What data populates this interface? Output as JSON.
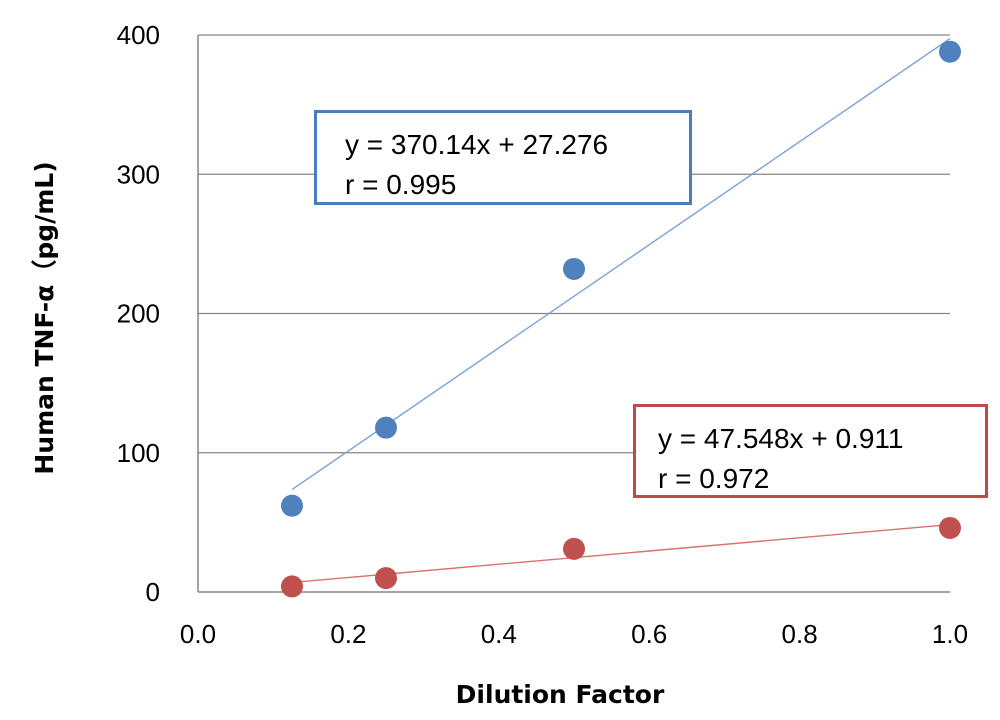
{
  "chart_data": {
    "type": "scatter",
    "title": "",
    "xlabel": "Dilution Factor",
    "ylabel": "Human TNF-α（pg/mL)",
    "xlim": [
      0.0,
      1.0
    ],
    "ylim": [
      0,
      400
    ],
    "xticks": [
      "0.0",
      "0.2",
      "0.4",
      "0.6",
      "0.8",
      "1.0"
    ],
    "yticks": [
      "0",
      "100",
      "200",
      "300",
      "400"
    ],
    "grid": "horizontal",
    "legend": "none",
    "series": [
      {
        "color": "#4F81BD",
        "line_color": "#7BA3D6",
        "x": [
          0.125,
          0.25,
          0.5,
          1.0
        ],
        "y": [
          62,
          118,
          232,
          388
        ],
        "trendline": {
          "slope": 370.14,
          "intercept": 27.276
        },
        "equation": "y = 370.14x + 27.276",
        "r_text": "r = 0.995"
      },
      {
        "color": "#C0504D",
        "line_color": "#D9716E",
        "x": [
          0.125,
          0.25,
          0.5,
          1.0
        ],
        "y": [
          4,
          10,
          31,
          46
        ],
        "trendline": {
          "slope": 47.548,
          "intercept": 0.911
        },
        "equation": "y = 47.548x + 0.911",
        "r_text": "r = 0.972"
      }
    ]
  }
}
